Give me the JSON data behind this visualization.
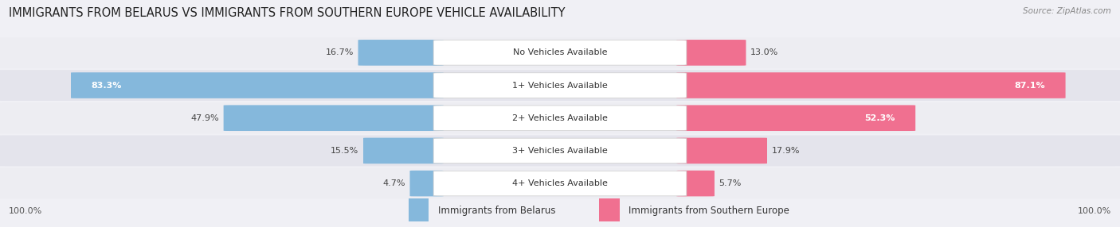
{
  "title": "IMMIGRANTS FROM BELARUS VS IMMIGRANTS FROM SOUTHERN EUROPE VEHICLE AVAILABILITY",
  "source": "Source: ZipAtlas.com",
  "categories": [
    "No Vehicles Available",
    "1+ Vehicles Available",
    "2+ Vehicles Available",
    "3+ Vehicles Available",
    "4+ Vehicles Available"
  ],
  "belarus_values": [
    16.7,
    83.3,
    47.9,
    15.5,
    4.7
  ],
  "southern_europe_values": [
    13.0,
    87.1,
    52.3,
    17.9,
    5.7
  ],
  "belarus_color": "#85b8dc",
  "southern_europe_color": "#f07090",
  "southern_europe_color_light": "#f9b0c0",
  "row_color_odd": "#ededf2",
  "row_color_even": "#e4e4ec",
  "bg_color": "#f0f0f5",
  "title_fontsize": 10.5,
  "label_fontsize": 8.0,
  "cat_fontsize": 8.0,
  "legend_fontsize": 8.5,
  "footer_fontsize": 8.0,
  "figsize": [
    14.06,
    2.86
  ],
  "dpi": 100
}
